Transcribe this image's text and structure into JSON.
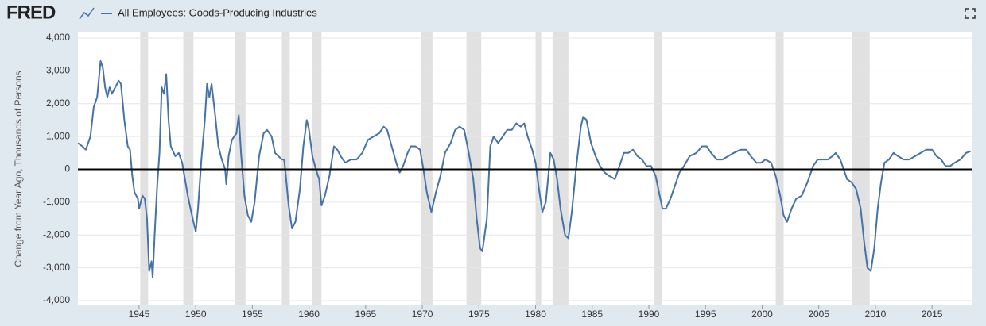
{
  "header": {
    "logo": "FRED"
  },
  "chart_data": {
    "type": "line",
    "y_label": "Change from Year Ago, Thousands of Persons",
    "x": [
      1939.6,
      1940.0,
      1940.3,
      1940.7,
      1941.0,
      1941.3,
      1941.6,
      1941.8,
      1942.0,
      1942.2,
      1942.4,
      1942.6,
      1942.9,
      1943.2,
      1943.4,
      1943.7,
      1944.0,
      1944.2,
      1944.4,
      1944.6,
      1944.9,
      1945.0,
      1945.3,
      1945.5,
      1945.7,
      1945.9,
      1946.1,
      1946.2,
      1946.4,
      1946.6,
      1946.8,
      1947.0,
      1947.2,
      1947.4,
      1947.6,
      1947.8,
      1948.2,
      1948.5,
      1948.8,
      1949.0,
      1949.3,
      1949.6,
      1949.8,
      1950.0,
      1950.2,
      1950.5,
      1950.8,
      1951.0,
      1951.2,
      1951.4,
      1951.7,
      1952.0,
      1952.3,
      1952.6,
      1952.7,
      1952.9,
      1953.2,
      1953.6,
      1953.8,
      1954.0,
      1954.3,
      1954.6,
      1954.9,
      1955.2,
      1955.6,
      1956.0,
      1956.3,
      1956.7,
      1957.0,
      1957.3,
      1957.6,
      1957.8,
      1957.9,
      1958.2,
      1958.5,
      1958.8,
      1959.2,
      1959.5,
      1959.8,
      1960.0,
      1960.3,
      1960.6,
      1960.9,
      1961.1,
      1961.4,
      1961.8,
      1962.2,
      1962.5,
      1962.8,
      1963.2,
      1963.7,
      1964.2,
      1964.7,
      1965.2,
      1965.7,
      1966.2,
      1966.6,
      1966.9,
      1967.3,
      1967.7,
      1968.0,
      1968.3,
      1968.7,
      1969.0,
      1969.4,
      1969.8,
      1970.1,
      1970.4,
      1970.8,
      1971.2,
      1971.6,
      1972.0,
      1972.5,
      1972.9,
      1973.3,
      1973.7,
      1974.1,
      1974.5,
      1974.8,
      1975.1,
      1975.3,
      1975.7,
      1976.0,
      1976.3,
      1976.7,
      1977.1,
      1977.5,
      1977.9,
      1978.3,
      1978.7,
      1979.0,
      1979.3,
      1979.7,
      1980.0,
      1980.3,
      1980.6,
      1980.9,
      1981.1,
      1981.3,
      1981.6,
      1981.9,
      1982.2,
      1982.6,
      1982.9,
      1983.2,
      1983.6,
      1984.0,
      1984.2,
      1984.5,
      1984.9,
      1985.3,
      1985.7,
      1986.1,
      1986.5,
      1987.0,
      1987.4,
      1987.8,
      1988.2,
      1988.6,
      1989.0,
      1989.4,
      1989.8,
      1990.2,
      1990.6,
      1990.9,
      1991.2,
      1991.5,
      1991.9,
      1992.3,
      1992.7,
      1993.1,
      1993.6,
      1994.2,
      1994.7,
      1995.1,
      1995.5,
      1996.0,
      1996.5,
      1997.0,
      1997.5,
      1998.1,
      1998.6,
      1999.0,
      1999.5,
      1999.9,
      2000.3,
      2000.8,
      2001.2,
      2001.6,
      2001.9,
      2002.2,
      2002.6,
      2003.0,
      2003.5,
      2004.0,
      2004.5,
      2004.9,
      2005.3,
      2005.8,
      2006.2,
      2006.5,
      2006.9,
      2007.2,
      2007.5,
      2007.9,
      2008.3,
      2008.7,
      2009.0,
      2009.3,
      2009.6,
      2009.9,
      2010.2,
      2010.5,
      2010.8,
      2011.2,
      2011.6,
      2012.0,
      2012.5,
      2013.0,
      2013.5,
      2014.0,
      2014.5,
      2015.0,
      2015.4,
      2015.8,
      2016.2,
      2016.6,
      2017.0,
      2017.5,
      2018.0,
      2018.4
    ],
    "series": [
      {
        "name": "All Employees: Goods-Producing Industries",
        "color": "#4572a7",
        "values": [
          800,
          700,
          600,
          1000,
          1900,
          2200,
          3300,
          3100,
          2500,
          2200,
          2500,
          2300,
          2500,
          2700,
          2600,
          1500,
          700,
          600,
          -200,
          -700,
          -900,
          -1200,
          -800,
          -900,
          -1500,
          -3100,
          -2800,
          -3300,
          -1800,
          -500,
          500,
          2500,
          2300,
          2900,
          1500,
          700,
          400,
          500,
          200,
          -200,
          -800,
          -1300,
          -1600,
          -1900,
          -1200,
          300,
          1500,
          2600,
          2200,
          2600,
          1700,
          700,
          300,
          0,
          -450,
          400,
          900,
          1100,
          1650,
          500,
          -800,
          -1400,
          -1600,
          -1000,
          400,
          1100,
          1200,
          1000,
          500,
          400,
          300,
          300,
          0,
          -1100,
          -1800,
          -1600,
          -600,
          700,
          1500,
          1200,
          400,
          0,
          -300,
          -1100,
          -800,
          -200,
          700,
          600,
          400,
          200,
          300,
          300,
          500,
          900,
          1000,
          1100,
          1300,
          1200,
          700,
          200,
          -100,
          100,
          500,
          700,
          700,
          600,
          0,
          -700,
          -1300,
          -700,
          -200,
          500,
          800,
          1200,
          1300,
          1200,
          500,
          -300,
          -1500,
          -2400,
          -2500,
          -1500,
          700,
          1000,
          800,
          1000,
          1200,
          1200,
          1400,
          1300,
          1400,
          1000,
          600,
          200,
          -600,
          -1300,
          -1000,
          -300,
          500,
          300,
          -300,
          -1200,
          -2000,
          -2100,
          -1300,
          100,
          1300,
          1600,
          1500,
          800,
          400,
          100,
          -100,
          -200,
          -300,
          100,
          500,
          500,
          600,
          400,
          300,
          100,
          100,
          -200,
          -700,
          -1200,
          -1200,
          -900,
          -500,
          -100,
          100,
          400,
          500,
          700,
          700,
          500,
          300,
          300,
          400,
          500,
          600,
          600,
          400,
          200,
          200,
          300,
          200,
          -200,
          -800,
          -1400,
          -1600,
          -1200,
          -900,
          -800,
          -400,
          100,
          300,
          300,
          300,
          400,
          500,
          300,
          0,
          -300,
          -400,
          -600,
          -1200,
          -2200,
          -3000,
          -3100,
          -2400,
          -1200,
          -400,
          200,
          300,
          500,
          400,
          300,
          300,
          400,
          500,
          600,
          600,
          400,
          300,
          100,
          100,
          200,
          300,
          500,
          550
        ]
      }
    ],
    "recessions": [
      [
        1945.1,
        1945.8
      ],
      [
        1948.9,
        1949.8
      ],
      [
        1953.5,
        1954.4
      ],
      [
        1957.6,
        1958.3
      ],
      [
        1960.3,
        1961.1
      ],
      [
        1969.9,
        1970.9
      ],
      [
        1973.9,
        1975.2
      ],
      [
        1980.0,
        1980.5
      ],
      [
        1981.5,
        1982.9
      ],
      [
        1990.5,
        1991.2
      ],
      [
        2001.2,
        2001.9
      ],
      [
        2007.9,
        2009.5
      ]
    ],
    "recession_color": "#e1e1e1",
    "xlim": [
      1939.6,
      2018.5
    ],
    "xticks": [
      1945,
      1950,
      1955,
      1960,
      1965,
      1970,
      1975,
      1980,
      1985,
      1990,
      1995,
      2000,
      2005,
      2010,
      2015
    ],
    "ylim": [
      -4000,
      4000
    ],
    "yticks": [
      {
        "value": -4000,
        "label": "-4,000"
      },
      {
        "value": -3000,
        "label": "-3,000"
      },
      {
        "value": -2000,
        "label": "-2,000"
      },
      {
        "value": -1000,
        "label": "-1,000"
      },
      0,
      {
        "value": 1000,
        "label": "1,000"
      },
      {
        "value": 2000,
        "label": "2,000"
      },
      {
        "value": 3000,
        "label": "3,000"
      },
      {
        "value": 4000,
        "label": "4,000"
      }
    ],
    "grid": true
  }
}
